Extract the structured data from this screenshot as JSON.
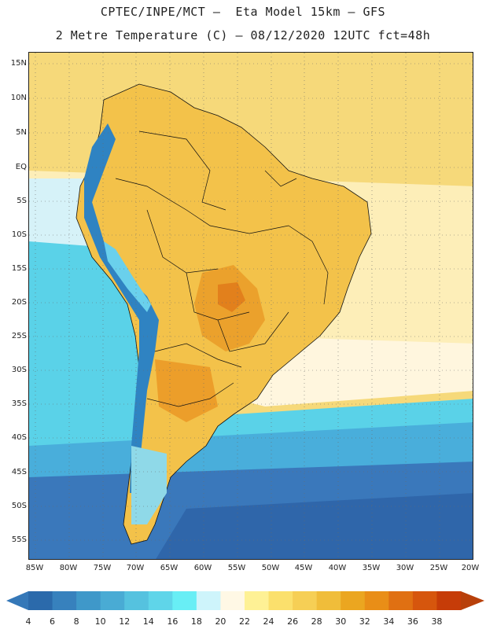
{
  "header": {
    "title_line1": "CPTEC/INPE/MCT –  Eta Model 15km – GFS",
    "title_line2": "2 Metre Temperature (C) – 08/12/2020 12UTC fct=48h"
  },
  "map": {
    "lat_labels": [
      "15N",
      "10N",
      "5N",
      "EQ",
      "5S",
      "10S",
      "15S",
      "20S",
      "25S",
      "30S",
      "35S",
      "40S",
      "45S",
      "50S",
      "55S"
    ],
    "lon_labels": [
      "85W",
      "80W",
      "75W",
      "70W",
      "65W",
      "60W",
      "55W",
      "50W",
      "45W",
      "40W",
      "35W",
      "30W",
      "25W",
      "20W"
    ],
    "palette": {
      "ocean_cold": "#3a74b8",
      "ocean_mid": "#4ab0d8",
      "ocean_cyan": "#5fd8ec",
      "ocean_light": "#c8f0f8",
      "ocean_cream": "#fff6dc",
      "ocean_warm": "#f9df8c",
      "land_warm": "#f5c44a",
      "land_hot": "#ec9e2a",
      "andes": "#2e80c0",
      "border": "#111111"
    }
  },
  "colorbar": {
    "labels": [
      "4",
      "6",
      "8",
      "10",
      "12",
      "14",
      "16",
      "18",
      "20",
      "22",
      "24",
      "26",
      "28",
      "30",
      "32",
      "34",
      "36",
      "38"
    ],
    "colors": [
      "#2b6aab",
      "#3781bd",
      "#3f98c9",
      "#49abd4",
      "#55c2df",
      "#5fd5e9",
      "#68eef5",
      "#cef4fb",
      "#fff8e5",
      "#fef195",
      "#fbe06c",
      "#f6cf55",
      "#f0bd3a",
      "#eba620",
      "#e98e17",
      "#e07012",
      "#d6560d",
      "#c63c08"
    ],
    "left_arrow_color": "#3578b8",
    "right_arrow_color": "#b8400a"
  }
}
